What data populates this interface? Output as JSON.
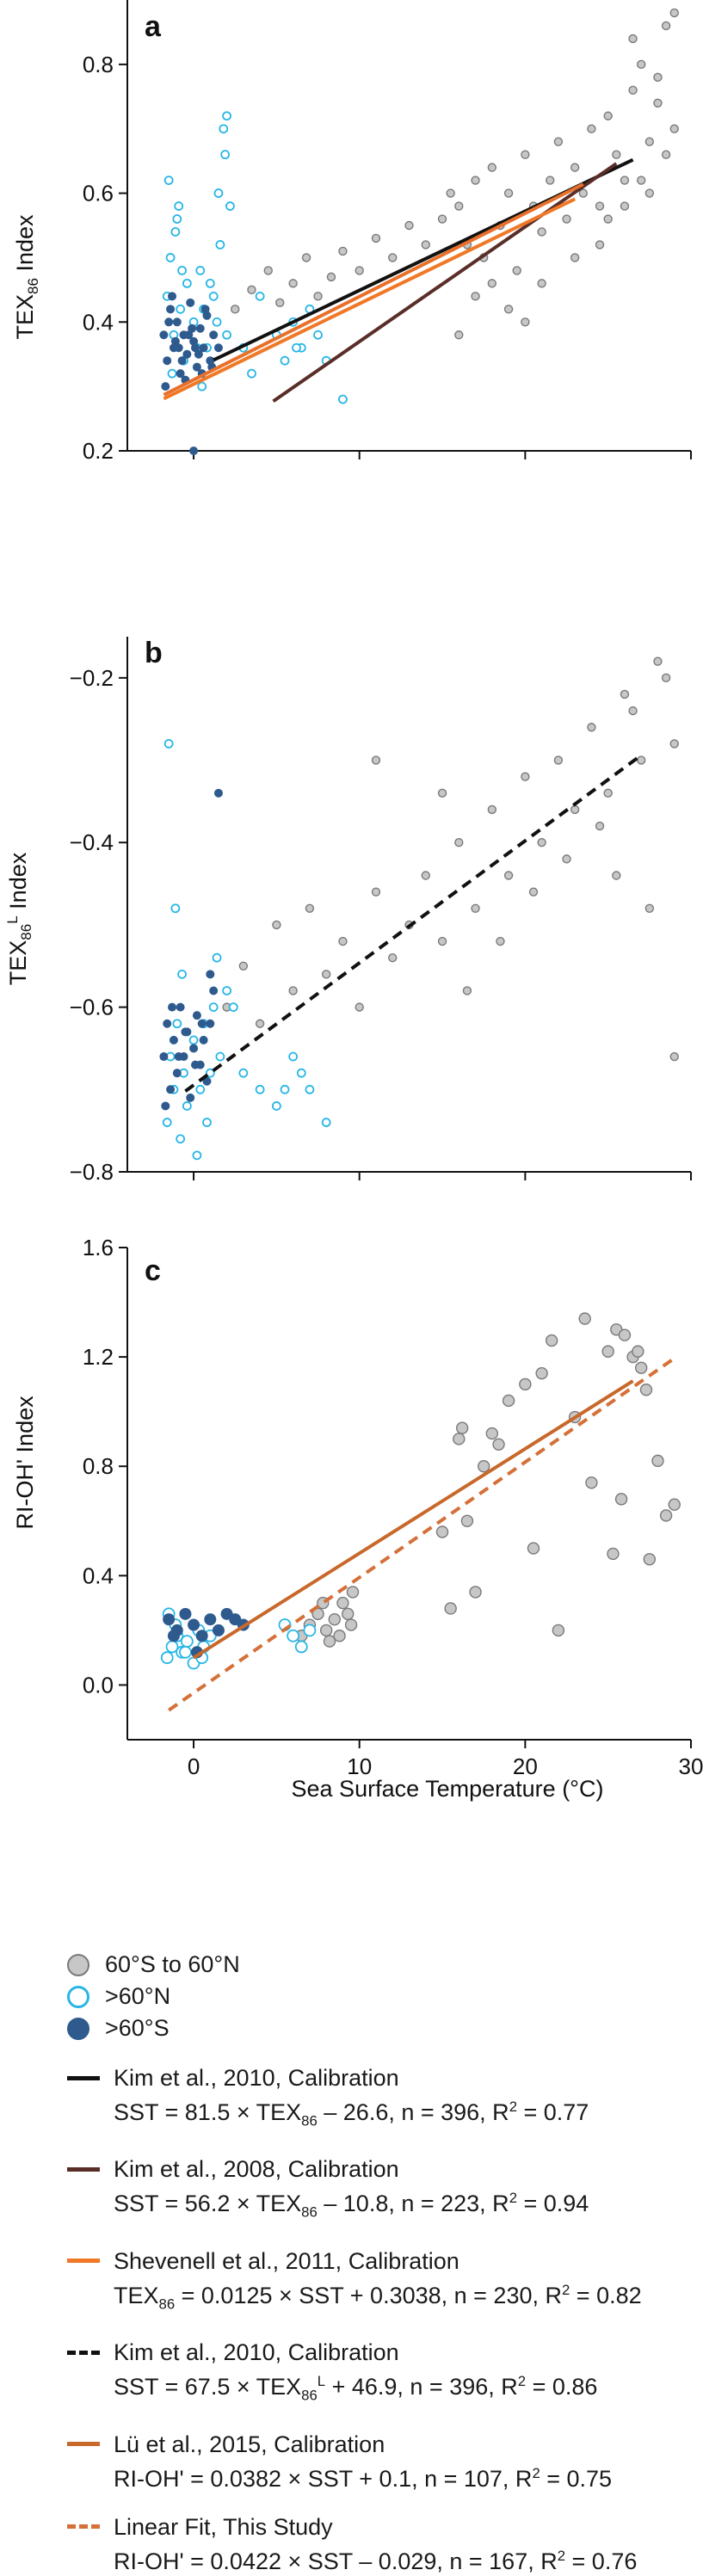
{
  "colors": {
    "gray_fill": "#c7c7c7",
    "gray_stroke": "#7a7a7a",
    "cyan": "#27b6e6",
    "navy": "#2e5a8e",
    "kim2010": "#111111",
    "kim2008": "#5a2e28",
    "shevenell": "#f07826",
    "lu2015": "#c8682a",
    "thisstudy": "#d47038"
  },
  "chart_data": [
    {
      "panel": "a",
      "type": "scatter",
      "ylabel_main": "TEX",
      "ylabel_sub": "86",
      "ylabel_rest": " Index",
      "ylim": [
        0.2,
        0.9
      ],
      "yticks": [
        "0.2",
        "0.4",
        "0.6",
        "0.8"
      ],
      "ytick_values": [
        0.2,
        0.4,
        0.6,
        0.8
      ],
      "xlim": [
        -4,
        30
      ],
      "series": [
        {
          "group": "60°S to 60°N",
          "x": [
            2.5,
            3.5,
            4.5,
            5.2,
            6.0,
            6.8,
            7.5,
            8.3,
            9.0,
            10.0,
            11.0,
            12.0,
            13.0,
            14.0,
            15.0,
            15.5,
            16.0,
            16.5,
            17.0,
            17.5,
            18.0,
            18.5,
            19.0,
            19.5,
            20.0,
            20.5,
            21.0,
            21.5,
            22.0,
            22.5,
            23.0,
            23.5,
            24.0,
            24.5,
            25.0,
            25.5,
            26.0,
            26.5,
            27.0,
            27.5,
            28.0,
            28.5,
            29.0,
            17.0,
            19.0,
            21.0,
            23.0,
            25.0,
            27.0,
            28.0,
            29.0,
            26.0,
            27.5,
            28.5,
            26.5,
            24.5,
            20.0,
            18.0,
            16.0
          ],
          "y": [
            0.42,
            0.45,
            0.48,
            0.43,
            0.46,
            0.5,
            0.44,
            0.47,
            0.51,
            0.48,
            0.53,
            0.5,
            0.55,
            0.52,
            0.56,
            0.6,
            0.58,
            0.52,
            0.62,
            0.5,
            0.64,
            0.55,
            0.6,
            0.48,
            0.66,
            0.58,
            0.54,
            0.62,
            0.68,
            0.56,
            0.64,
            0.6,
            0.7,
            0.58,
            0.72,
            0.66,
            0.62,
            0.76,
            0.8,
            0.68,
            0.74,
            0.86,
            0.7,
            0.44,
            0.42,
            0.46,
            0.5,
            0.56,
            0.62,
            0.78,
            0.88,
            0.58,
            0.6,
            0.66,
            0.84,
            0.52,
            0.4,
            0.46,
            0.38
          ]
        },
        {
          "group": ">60°N",
          "x": [
            -1.6,
            -1.4,
            -1.2,
            -1.0,
            -0.8,
            -0.6,
            -0.4,
            0.0,
            0.4,
            0.8,
            1.2,
            1.6,
            1.8,
            2.0,
            2.2,
            -1.5,
            -1.1,
            -0.7,
            0.2,
            0.6,
            1.0,
            1.4,
            2.0,
            3.0,
            3.5,
            5.0,
            5.5,
            6.0,
            6.5,
            7.0,
            7.5,
            8.0,
            9.0,
            -1.3,
            -0.9,
            0.5,
            1.5,
            1.9,
            4.0,
            6.2
          ],
          "y": [
            0.44,
            0.5,
            0.38,
            0.56,
            0.42,
            0.34,
            0.46,
            0.4,
            0.48,
            0.36,
            0.44,
            0.52,
            0.7,
            0.72,
            0.58,
            0.62,
            0.54,
            0.48,
            0.36,
            0.42,
            0.46,
            0.4,
            0.38,
            0.36,
            0.32,
            0.38,
            0.34,
            0.4,
            0.36,
            0.42,
            0.38,
            0.34,
            0.28,
            0.32,
            0.58,
            0.3,
            0.6,
            0.66,
            0.44,
            0.36
          ]
        },
        {
          "group": ">60°S",
          "x": [
            -1.8,
            -1.6,
            -1.4,
            -1.2,
            -1.0,
            -0.8,
            -0.6,
            -0.4,
            -0.2,
            0.0,
            0.2,
            0.4,
            0.6,
            0.8,
            1.0,
            1.2,
            1.5,
            -1.7,
            -1.3,
            -0.9,
            -0.5,
            -0.1,
            0.3,
            0.7,
            1.1,
            -1.5,
            -1.1,
            -0.7,
            -0.3,
            0.1,
            0.5,
            0.0
          ],
          "y": [
            0.38,
            0.34,
            0.42,
            0.36,
            0.4,
            0.32,
            0.38,
            0.35,
            0.43,
            0.37,
            0.33,
            0.39,
            0.36,
            0.41,
            0.34,
            0.38,
            0.36,
            0.3,
            0.44,
            0.36,
            0.31,
            0.39,
            0.35,
            0.42,
            0.33,
            0.4,
            0.37,
            0.34,
            0.38,
            0.36,
            0.32,
            0.2
          ]
        }
      ],
      "lines": [
        {
          "key": "kim2010",
          "x": [
            1.2,
            26.5
          ],
          "y": [
            0.341,
            0.652
          ],
          "dash": false
        },
        {
          "key": "kim2008",
          "x": [
            4.8,
            25.5
          ],
          "y": [
            0.277,
            0.646
          ],
          "dash": false
        },
        {
          "key": "shevenell",
          "x": [
            -1.8,
            23.0
          ],
          "y": [
            0.281,
            0.591
          ],
          "dash": false
        },
        {
          "key": "shevenell_fit",
          "x": [
            -1.8,
            23.5
          ],
          "y": [
            0.287,
            0.614
          ],
          "dash": false
        }
      ]
    },
    {
      "panel": "b",
      "type": "scatter",
      "ylabel_main": "TEX",
      "ylabel_sub": "86",
      "ylabel_sup": "L",
      "ylabel_rest": " Index",
      "ylim": [
        -0.8,
        -0.15
      ],
      "yticks": [
        "−0.8",
        "−0.6",
        "−0.4",
        "−0.2"
      ],
      "ytick_values": [
        -0.8,
        -0.6,
        -0.4,
        -0.2
      ],
      "xlim": [
        -4,
        30
      ],
      "series": [
        {
          "group": "60°S to 60°N",
          "x": [
            2.0,
            3.0,
            4.0,
            5.0,
            6.0,
            7.0,
            8.0,
            9.0,
            10.0,
            11.0,
            12.0,
            13.0,
            14.0,
            15.0,
            16.0,
            17.0,
            18.0,
            19.0,
            20.0,
            21.0,
            22.0,
            23.0,
            24.0,
            25.0,
            26.0,
            27.0,
            28.0,
            29.0,
            16.5,
            18.5,
            20.5,
            22.5,
            24.5,
            26.5,
            28.5,
            11.0,
            15.0,
            25.5,
            27.5,
            29.0
          ],
          "y": [
            -0.6,
            -0.55,
            -0.62,
            -0.5,
            -0.58,
            -0.48,
            -0.56,
            -0.52,
            -0.6,
            -0.46,
            -0.54,
            -0.5,
            -0.44,
            -0.52,
            -0.4,
            -0.48,
            -0.36,
            -0.44,
            -0.32,
            -0.4,
            -0.3,
            -0.36,
            -0.26,
            -0.34,
            -0.22,
            -0.3,
            -0.18,
            -0.28,
            -0.58,
            -0.52,
            -0.46,
            -0.42,
            -0.38,
            -0.24,
            -0.2,
            -0.3,
            -0.34,
            -0.44,
            -0.48,
            -0.66
          ]
        },
        {
          "group": ">60°N",
          "x": [
            -1.6,
            -1.4,
            -1.2,
            -1.0,
            -0.8,
            -0.6,
            -0.4,
            0.0,
            0.4,
            0.8,
            1.2,
            1.6,
            2.0,
            3.0,
            4.0,
            5.0,
            6.0,
            7.0,
            8.0,
            -1.5,
            -1.1,
            -0.7,
            0.2,
            0.6,
            1.0,
            1.4,
            2.4,
            5.5,
            6.5
          ],
          "y": [
            -0.74,
            -0.66,
            -0.7,
            -0.62,
            -0.76,
            -0.68,
            -0.72,
            -0.64,
            -0.7,
            -0.74,
            -0.6,
            -0.66,
            -0.58,
            -0.68,
            -0.7,
            -0.72,
            -0.66,
            -0.7,
            -0.74,
            -0.28,
            -0.48,
            -0.56,
            -0.78,
            -0.62,
            -0.68,
            -0.54,
            -0.6,
            -0.7,
            -0.68
          ]
        },
        {
          "group": ">60°S",
          "x": [
            -1.8,
            -1.6,
            -1.4,
            -1.2,
            -1.0,
            -0.8,
            -0.6,
            -0.4,
            -0.2,
            0.0,
            0.2,
            0.4,
            0.6,
            0.8,
            1.0,
            1.2,
            1.5,
            -1.7,
            -1.3,
            -0.9,
            -0.5,
            0.1,
            0.5,
            1.0
          ],
          "y": [
            -0.66,
            -0.62,
            -0.7,
            -0.64,
            -0.68,
            -0.6,
            -0.66,
            -0.63,
            -0.71,
            -0.65,
            -0.61,
            -0.67,
            -0.64,
            -0.69,
            -0.62,
            -0.58,
            -0.34,
            -0.72,
            -0.6,
            -0.66,
            -0.63,
            -0.67,
            -0.62,
            -0.56
          ]
        }
      ],
      "lines": [
        {
          "key": "kim2010",
          "x": [
            -0.5,
            27.0
          ],
          "y": [
            -0.702,
            -0.294
          ],
          "dash": true
        }
      ]
    },
    {
      "panel": "c",
      "type": "scatter",
      "ylabel_main": "RI-OH' Index",
      "ylim": [
        -0.2,
        1.6
      ],
      "yticks": [
        "0.0",
        "0.4",
        "0.8",
        "1.2",
        "1.6"
      ],
      "ytick_values": [
        0.0,
        0.4,
        0.8,
        1.2,
        1.6
      ],
      "xlim": [
        -4,
        30
      ],
      "xticks": [
        "0",
        "10",
        "20",
        "30"
      ],
      "xtick_values": [
        0,
        10,
        20,
        30
      ],
      "xlabel": "Sea Surface Temperature (°C)",
      "series": [
        {
          "group": "60°S to 60°N",
          "x": [
            6.5,
            7.0,
            7.5,
            8.0,
            8.5,
            9.0,
            9.5,
            8.2,
            8.8,
            9.3,
            7.8,
            9.6,
            15.0,
            15.5,
            16.0,
            16.5,
            17.0,
            17.5,
            18.0,
            19.0,
            20.0,
            21.0,
            22.0,
            23.0,
            24.0,
            25.0,
            25.5,
            26.0,
            26.5,
            27.0,
            27.3,
            26.8,
            25.8,
            28.0,
            28.5,
            29.0,
            25.3,
            27.5,
            16.2,
            18.4,
            21.6,
            23.6,
            20.5
          ],
          "y": [
            0.18,
            0.22,
            0.26,
            0.2,
            0.24,
            0.3,
            0.22,
            0.16,
            0.18,
            0.26,
            0.3,
            0.34,
            0.56,
            0.28,
            0.9,
            0.6,
            0.34,
            0.8,
            0.92,
            1.04,
            1.1,
            1.14,
            0.2,
            0.98,
            0.74,
            1.22,
            1.3,
            1.28,
            1.2,
            1.16,
            1.08,
            1.22,
            0.68,
            0.82,
            0.62,
            0.66,
            0.48,
            0.46,
            0.94,
            0.88,
            1.26,
            1.34,
            0.5
          ]
        },
        {
          "group": ">60°N",
          "x": [
            -1.6,
            -1.3,
            -1.0,
            -0.7,
            -0.4,
            0.0,
            0.3,
            0.6,
            1.0,
            5.5,
            6.0,
            6.5,
            7.0,
            -1.5,
            -1.1,
            -0.5,
            0.5
          ],
          "y": [
            0.1,
            0.14,
            0.18,
            0.12,
            0.16,
            0.08,
            0.2,
            0.14,
            0.18,
            0.22,
            0.18,
            0.14,
            0.2,
            0.26,
            0.22,
            0.12,
            0.1
          ]
        },
        {
          "group": ">60°S",
          "x": [
            -1.5,
            -1.0,
            -0.5,
            0.0,
            0.5,
            1.0,
            1.5,
            2.0,
            2.5,
            3.0,
            -1.2,
            0.2
          ],
          "y": [
            0.24,
            0.2,
            0.26,
            0.22,
            0.18,
            0.24,
            0.2,
            0.26,
            0.24,
            0.22,
            0.18,
            0.12
          ]
        }
      ],
      "lines": [
        {
          "key": "lu2015",
          "x": [
            0.0,
            26.5
          ],
          "y": [
            0.1,
            1.112
          ],
          "dash": false
        },
        {
          "key": "thisstudy",
          "x": [
            -1.5,
            29.0
          ],
          "y": [
            -0.092,
            1.195
          ],
          "dash": true
        }
      ]
    }
  ],
  "legend": {
    "markers": [
      {
        "key": "gray",
        "label": "60°S to 60°N"
      },
      {
        "key": "cyan",
        "label": ">60°N"
      },
      {
        "key": "navy",
        "label": ">60°S"
      }
    ],
    "lines": {
      "kim2010": {
        "title": "Kim et al., 2010, Calibration",
        "eq_a": "SST = 81.5 × TEX",
        "eq_sub": "86",
        "eq_b": " – 26.6, n = 396, R",
        "eq_sup": "2",
        "eq_c": " = 0.77"
      },
      "kim2008": {
        "title": "Kim et al., 2008, Calibration",
        "eq_a": "SST = 56.2 × TEX",
        "eq_sub": "86",
        "eq_b": " – 10.8, n = 223, R",
        "eq_sup": "2",
        "eq_c": " = 0.94"
      },
      "shevenell": {
        "title": "Shevenell et al., 2011, Calibration",
        "eq_a": "TEX",
        "eq_sub": "86",
        "eq_b": " = 0.0125 × SST + 0.3038, n = 230, R",
        "eq_sup": "2",
        "eq_c": " = 0.82"
      },
      "kim2010L": {
        "title": "Kim et al., 2010, Calibration",
        "eq_a": "SST = 67.5 × TEX",
        "eq_sub": "86",
        "eq_supL": "L",
        "eq_b": " + 46.9, n = 396, R",
        "eq_sup": "2",
        "eq_c": " = 0.86"
      },
      "lu2015": {
        "title": "Lü et al., 2015, Calibration",
        "eq_a": "RI-OH' = 0.0382 × SST + 0.1, n = 107, R",
        "eq_sup": "2",
        "eq_c": " = 0.75"
      },
      "thisstudy": {
        "title": "Linear Fit, This Study",
        "eq_a": "RI-OH' = 0.0422 × SST – 0.029, n = 167, R",
        "eq_sup": "2",
        "eq_c": " = 0.76"
      }
    }
  }
}
